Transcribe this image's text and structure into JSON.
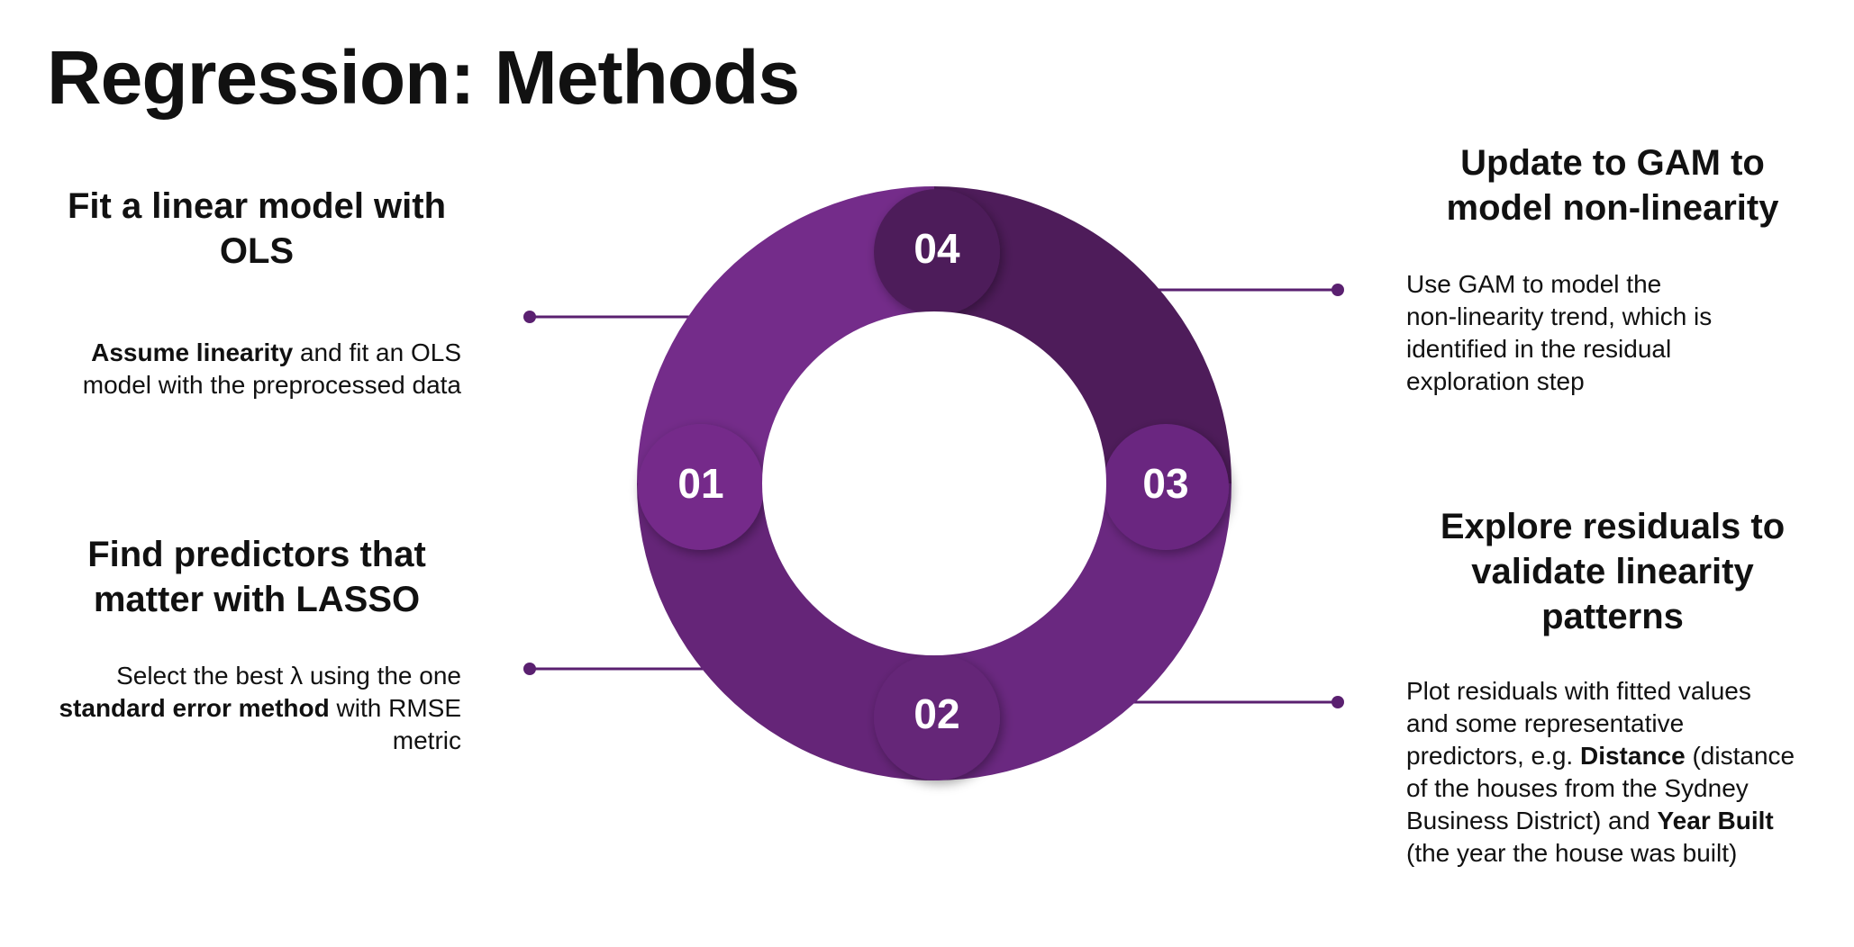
{
  "title": "Regression: Methods",
  "colors": {
    "segment_01": "#742c8a",
    "segment_02": "#652578",
    "segment_03": "#6a2880",
    "segment_04": "#4e1c5a",
    "connector": "#5a2070"
  },
  "steps": [
    {
      "number": "01",
      "heading_lines": [
        "Fit a linear model with",
        "OLS"
      ],
      "description": [
        [
          {
            "t": "Assume linearity",
            "b": true
          },
          {
            "t": " and fit an OLS",
            "b": false
          }
        ],
        [
          {
            "t": "model with the preprocessed data",
            "b": false
          }
        ]
      ]
    },
    {
      "number": "02",
      "heading_lines": [
        "Find predictors that",
        "matter with LASSO"
      ],
      "description": [
        [
          {
            "t": "Select the best λ using the one",
            "b": false
          }
        ],
        [
          {
            "t": "standard error method",
            "b": true
          },
          {
            "t": " with RMSE",
            "b": false
          }
        ],
        [
          {
            "t": "metric",
            "b": false
          }
        ]
      ]
    },
    {
      "number": "03",
      "heading_lines": [
        "Explore residuals to",
        "validate linearity",
        "patterns"
      ],
      "description": [
        [
          {
            "t": "Plot residuals with fitted values",
            "b": false
          }
        ],
        [
          {
            "t": "and some representative",
            "b": false
          }
        ],
        [
          {
            "t": "predictors, e.g. ",
            "b": false
          },
          {
            "t": "Distance",
            "b": true
          },
          {
            "t": " (distance",
            "b": false
          }
        ],
        [
          {
            "t": "of the houses from the Sydney",
            "b": false
          }
        ],
        [
          {
            "t": "Business District) and ",
            "b": false
          },
          {
            "t": "Year Built",
            "b": true
          }
        ],
        [
          {
            "t": "(the year the house was built)",
            "b": false
          }
        ]
      ]
    },
    {
      "number": "04",
      "heading_lines": [
        "Update to GAM to",
        "model non-linearity"
      ],
      "description": [
        [
          {
            "t": "Use GAM to model the",
            "b": false
          }
        ],
        [
          {
            "t": "non-linearity trend, which is",
            "b": false
          }
        ],
        [
          {
            "t": "identified in the residual",
            "b": false
          }
        ],
        [
          {
            "t": "exploration step",
            "b": false
          }
        ]
      ]
    }
  ]
}
